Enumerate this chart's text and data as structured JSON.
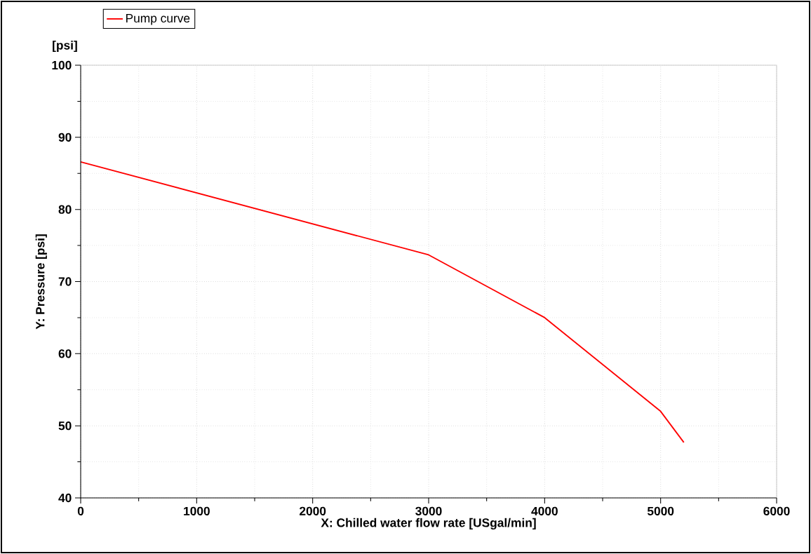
{
  "chart_data": {
    "type": "line",
    "xlabel": "X: Chilled water flow rate [USgal/min]",
    "ylabel": "Y: Pressure [psi]",
    "annotations": [
      "[psi]"
    ],
    "xlim": [
      0,
      6000
    ],
    "xticks": [
      0,
      1000,
      2000,
      3000,
      4000,
      5000,
      6000
    ],
    "ylim": [
      40,
      100
    ],
    "yticks": [
      40,
      50,
      60,
      70,
      80,
      90,
      100
    ],
    "grid": true,
    "legend": "top left",
    "marker": "none",
    "line_style": "solid",
    "series": [
      {
        "name": "Pump curve",
        "color": "#ff0000",
        "x": [
          0,
          3000,
          4000,
          5000,
          5200
        ],
        "values": [
          86.6,
          73.7,
          65.0,
          52.0,
          47.7
        ]
      }
    ]
  }
}
